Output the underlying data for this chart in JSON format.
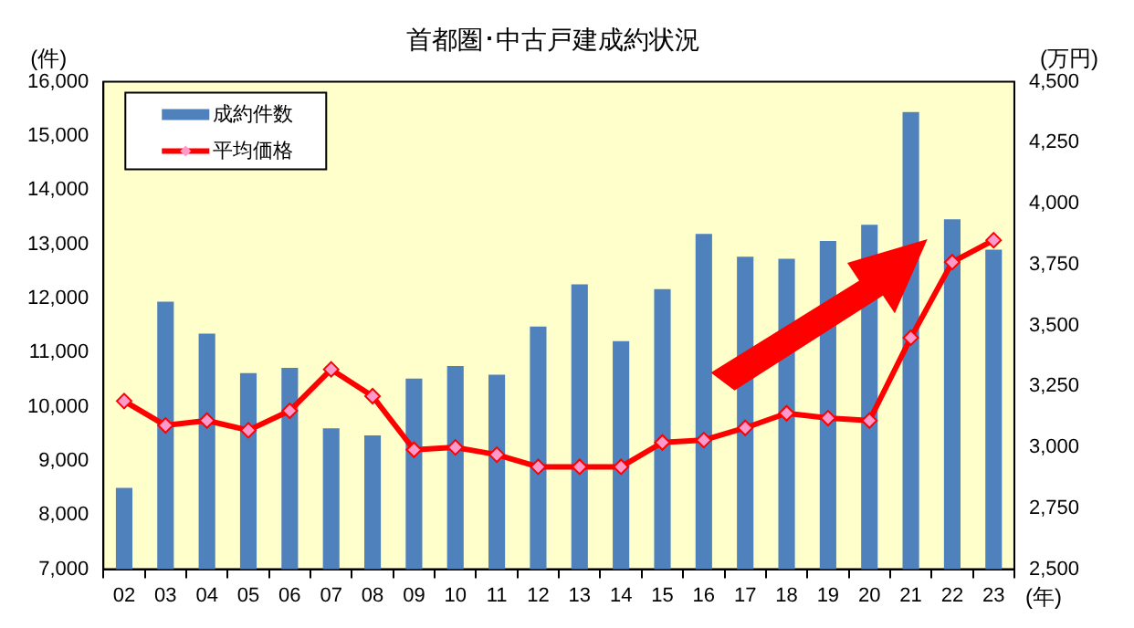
{
  "chart_data": {
    "type": "bar",
    "title": "首都圏･中古戸建成約状況",
    "ylabel": "(件)",
    "y2label": "(万円)",
    "xlabel": "(年)",
    "categories": [
      "02",
      "03",
      "04",
      "05",
      "06",
      "07",
      "08",
      "09",
      "10",
      "11",
      "12",
      "13",
      "14",
      "15",
      "16",
      "17",
      "18",
      "19",
      "20",
      "21",
      "22",
      "23"
    ],
    "series": [
      {
        "name": "成約件数",
        "color": "#4f81bd",
        "values": [
          8500,
          11940,
          11350,
          10620,
          10720,
          9600,
          9470,
          10520,
          10750,
          10590,
          11480,
          12260,
          11210,
          12170,
          13190,
          12770,
          12730,
          13060,
          13360,
          15440,
          13460,
          12900
        ]
      },
      {
        "name": "平均価格",
        "type": "line",
        "axis": "y2",
        "color": "#ff0000",
        "marker": "diamond",
        "values": [
          3190,
          3090,
          3110,
          3070,
          3150,
          3320,
          3210,
          2990,
          3000,
          2970,
          2920,
          2920,
          2920,
          3020,
          3030,
          3080,
          3140,
          3120,
          3110,
          3450,
          3760,
          3850
        ]
      }
    ],
    "ylim": [
      7000,
      16000
    ],
    "yticks": [
      {
        "value": 7000,
        "label": "7,000"
      },
      {
        "value": 8000,
        "label": "8,000"
      },
      {
        "value": 9000,
        "label": "9,000"
      },
      {
        "value": 10000,
        "label": "10,000"
      },
      {
        "value": 11000,
        "label": "11,000"
      },
      {
        "value": 12000,
        "label": "12,000"
      },
      {
        "value": 13000,
        "label": "13,000"
      },
      {
        "value": 14000,
        "label": "14,000"
      },
      {
        "value": 15000,
        "label": "15,000"
      },
      {
        "value": 16000,
        "label": "16,000"
      }
    ],
    "y2lim": [
      2500,
      4500
    ],
    "y2ticks": [
      {
        "value": 2500,
        "label": "2,500"
      },
      {
        "value": 2750,
        "label": "2,750"
      },
      {
        "value": 3000,
        "label": "3,000"
      },
      {
        "value": 3250,
        "label": "3,250"
      },
      {
        "value": 3500,
        "label": "3,500"
      },
      {
        "value": 3750,
        "label": "3,750"
      },
      {
        "value": 4000,
        "label": "4,000"
      },
      {
        "value": 4250,
        "label": "4,250"
      },
      {
        "value": 4500,
        "label": "4,500"
      }
    ],
    "grid": false,
    "legend": "top left"
  }
}
